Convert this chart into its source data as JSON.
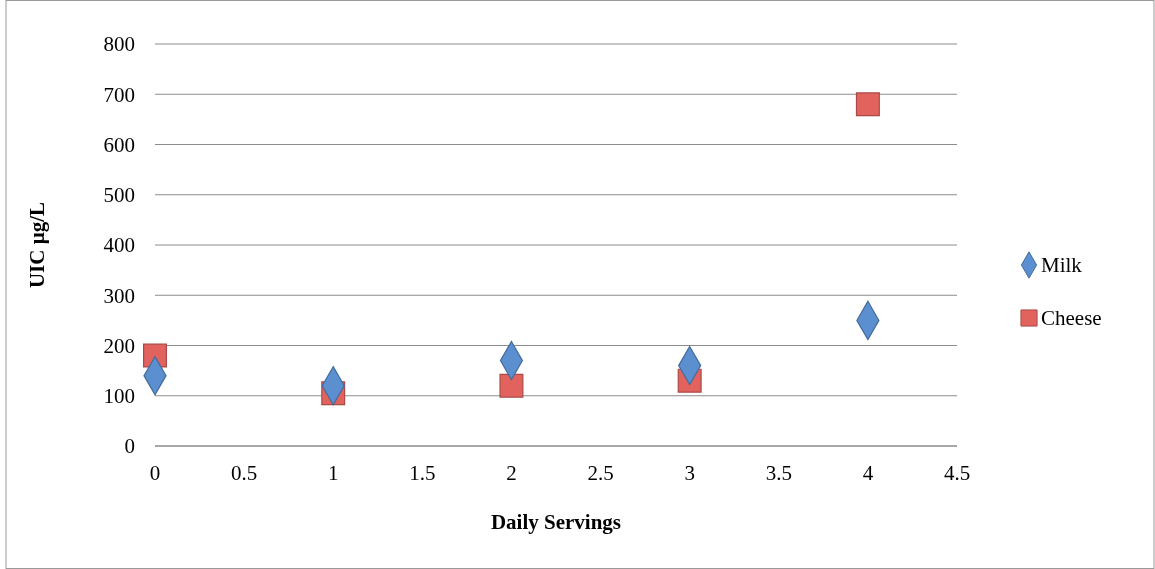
{
  "chart_data": {
    "type": "scatter",
    "xlabel": "Daily Servings",
    "ylabel": "UIC µg/L",
    "xlim": [
      0,
      4.5
    ],
    "xticks": [
      0,
      0.5,
      1,
      1.5,
      2,
      2.5,
      3,
      3.5,
      4,
      4.5
    ],
    "ylim": [
      0,
      800
    ],
    "yticks": [
      0,
      100,
      200,
      300,
      400,
      500,
      600,
      700,
      800
    ],
    "grid": "y",
    "legend": "right",
    "series": [
      {
        "name": "Milk",
        "color": "#5b8fd0",
        "marker": "diamond",
        "x": [
          0,
          1,
          2,
          3,
          4
        ],
        "values": [
          140,
          120,
          170,
          160,
          250
        ]
      },
      {
        "name": "Cheese",
        "color": "#e2625e",
        "marker": "square",
        "x": [
          0,
          1,
          2,
          3,
          4
        ],
        "values": [
          180,
          105,
          120,
          130,
          680
        ]
      }
    ]
  }
}
